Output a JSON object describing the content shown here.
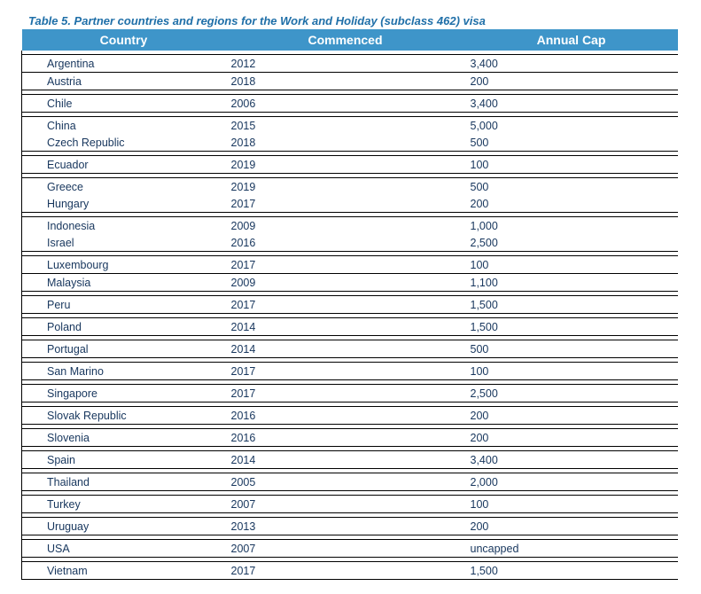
{
  "title": {
    "text": "Table 5. Partner countries and regions for the Work and Holiday (subclass 462) visa",
    "color": "#1f6fa8"
  },
  "header": {
    "bg": "#3e95c9",
    "fg": "#ffffff",
    "cols": [
      "Country",
      "Commenced",
      "Annual Cap"
    ]
  },
  "text_color": "#17365d",
  "rows": [
    {
      "country": "Argentina",
      "commenced": "2012",
      "cap": "3,400",
      "gap_before": true
    },
    {
      "country": "Austria",
      "commenced": "2018",
      "cap": "200",
      "gap_before": false
    },
    {
      "country": "Chile",
      "commenced": "2006",
      "cap": "3,400",
      "gap_before": true
    },
    {
      "country": "China",
      "commenced": "2015",
      "cap": "5,000",
      "gap_before": true
    },
    {
      "country": "Czech Republic",
      "commenced": "2018",
      "cap": "500",
      "gap_before": false,
      "merge_up": true
    },
    {
      "country": "Ecuador",
      "commenced": "2019",
      "cap": "100",
      "gap_before": true
    },
    {
      "country": "Greece",
      "commenced": "2019",
      "cap": "500",
      "gap_before": true
    },
    {
      "country": "Hungary",
      "commenced": "2017",
      "cap": "200",
      "gap_before": false,
      "merge_up": true
    },
    {
      "country": "Indonesia",
      "commenced": "2009",
      "cap": "1,000",
      "gap_before": true
    },
    {
      "country": "Israel",
      "commenced": "2016",
      "cap": "2,500",
      "gap_before": false,
      "merge_up": true
    },
    {
      "country": "Luxembourg",
      "commenced": "2017",
      "cap": "100",
      "gap_before": true
    },
    {
      "country": "Malaysia",
      "commenced": "2009",
      "cap": "1,100",
      "gap_before": false
    },
    {
      "country": "Peru",
      "commenced": "2017",
      "cap": "1,500",
      "gap_before": true
    },
    {
      "country": "Poland",
      "commenced": "2014",
      "cap": "1,500",
      "gap_before": true
    },
    {
      "country": "Portugal",
      "commenced": "2014",
      "cap": "500",
      "gap_before": true
    },
    {
      "country": "San Marino",
      "commenced": "2017",
      "cap": "100",
      "gap_before": true
    },
    {
      "country": "Singapore",
      "commenced": "2017",
      "cap": "2,500",
      "gap_before": true
    },
    {
      "country": "Slovak Republic",
      "commenced": "2016",
      "cap": "200",
      "gap_before": true
    },
    {
      "country": "Slovenia",
      "commenced": "2016",
      "cap": "200",
      "gap_before": true
    },
    {
      "country": "Spain",
      "commenced": "2014",
      "cap": "3,400",
      "gap_before": true
    },
    {
      "country": "Thailand",
      "commenced": "2005",
      "cap": "2,000",
      "gap_before": true
    },
    {
      "country": "Turkey",
      "commenced": "2007",
      "cap": "100",
      "gap_before": true
    },
    {
      "country": "Uruguay",
      "commenced": "2013",
      "cap": "200",
      "gap_before": true
    },
    {
      "country": "USA",
      "commenced": "2007",
      "cap": "uncapped",
      "gap_before": true
    },
    {
      "country": "Vietnam",
      "commenced": "2017",
      "cap": "1,500",
      "gap_before": true
    }
  ]
}
